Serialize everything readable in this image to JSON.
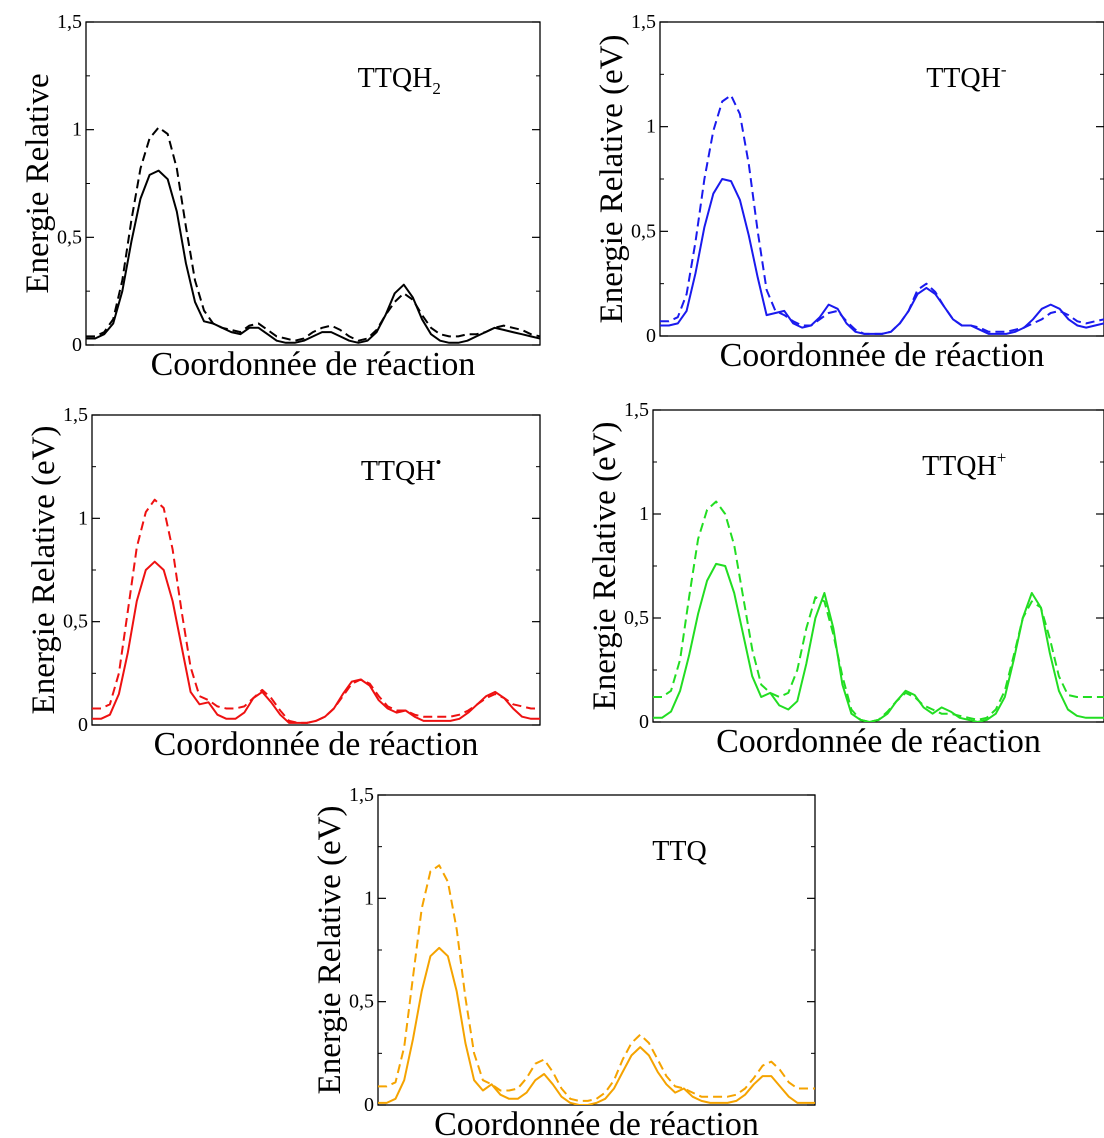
{
  "chart_data": [
    {
      "type": "line",
      "title": "TTQH",
      "title_sup": "",
      "title_sub": "2",
      "xlabel": "Coordonnée de réaction",
      "ylabel": "Energie Relative",
      "ylim": [
        0,
        1.5
      ],
      "yticks": [
        {
          "v": 0,
          "label": "0"
        },
        {
          "v": 0.5,
          "label": "0,5"
        },
        {
          "v": 1,
          "label": "1"
        },
        {
          "v": 1.5,
          "label": "1,5"
        }
      ],
      "color": "#000000",
      "x": [
        0,
        0.02,
        0.04,
        0.06,
        0.08,
        0.1,
        0.12,
        0.14,
        0.16,
        0.18,
        0.2,
        0.22,
        0.24,
        0.26,
        0.28,
        0.3,
        0.32,
        0.34,
        0.36,
        0.38,
        0.4,
        0.42,
        0.44,
        0.46,
        0.48,
        0.5,
        0.52,
        0.54,
        0.56,
        0.58,
        0.6,
        0.62,
        0.64,
        0.66,
        0.68,
        0.7,
        0.72,
        0.74,
        0.76,
        0.78,
        0.8,
        0.82,
        0.84,
        0.86,
        0.88,
        0.9,
        0.92,
        0.94,
        0.96,
        0.98,
        1
      ],
      "series": [
        {
          "style": "solid",
          "values": [
            0.03,
            0.03,
            0.05,
            0.1,
            0.25,
            0.48,
            0.68,
            0.79,
            0.81,
            0.77,
            0.62,
            0.38,
            0.2,
            0.11,
            0.1,
            0.08,
            0.06,
            0.05,
            0.08,
            0.08,
            0.05,
            0.02,
            0.01,
            0.01,
            0.02,
            0.04,
            0.06,
            0.06,
            0.04,
            0.02,
            0.01,
            0.02,
            0.06,
            0.14,
            0.24,
            0.28,
            0.22,
            0.12,
            0.05,
            0.02,
            0.01,
            0.01,
            0.02,
            0.04,
            0.06,
            0.08,
            0.07,
            0.06,
            0.05,
            0.04,
            0.03
          ]
        },
        {
          "style": "dashed",
          "values": [
            0.04,
            0.04,
            0.06,
            0.12,
            0.3,
            0.58,
            0.82,
            0.96,
            1.01,
            0.98,
            0.82,
            0.55,
            0.3,
            0.16,
            0.1,
            0.08,
            0.07,
            0.06,
            0.09,
            0.1,
            0.07,
            0.04,
            0.03,
            0.02,
            0.03,
            0.06,
            0.08,
            0.09,
            0.07,
            0.04,
            0.02,
            0.03,
            0.07,
            0.14,
            0.2,
            0.24,
            0.21,
            0.14,
            0.08,
            0.05,
            0.04,
            0.04,
            0.05,
            0.05,
            0.06,
            0.08,
            0.09,
            0.08,
            0.07,
            0.05,
            0.04
          ]
        }
      ]
    },
    {
      "type": "line",
      "title": "TTQH",
      "title_sup": "-",
      "title_sub": "",
      "xlabel": "Coordonnée de réaction",
      "ylabel": "Energie Relative (eV)",
      "ylim": [
        0,
        1.5
      ],
      "yticks": [
        {
          "v": 0,
          "label": "0"
        },
        {
          "v": 0.5,
          "label": "0,5"
        },
        {
          "v": 1,
          "label": "1"
        },
        {
          "v": 1.5,
          "label": "1,5"
        }
      ],
      "color": "#1a1aee",
      "x": [
        0,
        0.02,
        0.04,
        0.06,
        0.08,
        0.1,
        0.12,
        0.14,
        0.16,
        0.18,
        0.2,
        0.22,
        0.24,
        0.26,
        0.28,
        0.3,
        0.32,
        0.34,
        0.36,
        0.38,
        0.4,
        0.42,
        0.44,
        0.46,
        0.48,
        0.5,
        0.52,
        0.54,
        0.56,
        0.58,
        0.6,
        0.62,
        0.64,
        0.66,
        0.68,
        0.7,
        0.72,
        0.74,
        0.76,
        0.78,
        0.8,
        0.82,
        0.84,
        0.86,
        0.88,
        0.9,
        0.92,
        0.94,
        0.96,
        0.98,
        1
      ],
      "series": [
        {
          "style": "solid",
          "values": [
            0.05,
            0.05,
            0.06,
            0.12,
            0.3,
            0.52,
            0.68,
            0.75,
            0.74,
            0.65,
            0.48,
            0.28,
            0.1,
            0.11,
            0.12,
            0.06,
            0.04,
            0.05,
            0.09,
            0.15,
            0.13,
            0.06,
            0.02,
            0.01,
            0.01,
            0.01,
            0.02,
            0.06,
            0.12,
            0.2,
            0.23,
            0.2,
            0.14,
            0.08,
            0.05,
            0.05,
            0.03,
            0.01,
            0.01,
            0.01,
            0.02,
            0.04,
            0.08,
            0.13,
            0.15,
            0.13,
            0.08,
            0.05,
            0.04,
            0.05,
            0.06
          ]
        },
        {
          "style": "dashed",
          "values": [
            0.07,
            0.07,
            0.09,
            0.2,
            0.45,
            0.75,
            0.98,
            1.12,
            1.15,
            1.06,
            0.82,
            0.5,
            0.22,
            0.12,
            0.1,
            0.07,
            0.05,
            0.05,
            0.08,
            0.11,
            0.12,
            0.07,
            0.03,
            0.01,
            0.01,
            0.01,
            0.02,
            0.06,
            0.12,
            0.22,
            0.25,
            0.21,
            0.14,
            0.08,
            0.05,
            0.05,
            0.04,
            0.02,
            0.02,
            0.02,
            0.03,
            0.04,
            0.06,
            0.08,
            0.11,
            0.12,
            0.1,
            0.07,
            0.06,
            0.07,
            0.08
          ]
        }
      ]
    },
    {
      "type": "line",
      "title": "TTQH",
      "title_sup": "•",
      "title_sub": "",
      "xlabel": "Coordonnée de réaction",
      "ylabel": "Energie Relative (eV)",
      "ylim": [
        0,
        1.5
      ],
      "yticks": [
        {
          "v": 0,
          "label": "0"
        },
        {
          "v": 0.5,
          "label": "0,5"
        },
        {
          "v": 1,
          "label": "1"
        },
        {
          "v": 1.5,
          "label": "1,5"
        }
      ],
      "color": "#ee1111",
      "x": [
        0,
        0.02,
        0.04,
        0.06,
        0.08,
        0.1,
        0.12,
        0.14,
        0.16,
        0.18,
        0.2,
        0.22,
        0.24,
        0.26,
        0.28,
        0.3,
        0.32,
        0.34,
        0.36,
        0.38,
        0.4,
        0.42,
        0.44,
        0.46,
        0.48,
        0.5,
        0.52,
        0.54,
        0.56,
        0.58,
        0.6,
        0.62,
        0.64,
        0.66,
        0.68,
        0.7,
        0.72,
        0.74,
        0.76,
        0.78,
        0.8,
        0.82,
        0.84,
        0.86,
        0.88,
        0.9,
        0.92,
        0.94,
        0.96,
        0.98,
        1
      ],
      "series": [
        {
          "style": "solid",
          "values": [
            0.03,
            0.03,
            0.05,
            0.15,
            0.35,
            0.6,
            0.75,
            0.79,
            0.75,
            0.6,
            0.38,
            0.16,
            0.1,
            0.11,
            0.05,
            0.03,
            0.03,
            0.06,
            0.13,
            0.16,
            0.11,
            0.05,
            0.01,
            0.01,
            0.01,
            0.02,
            0.04,
            0.08,
            0.15,
            0.21,
            0.22,
            0.19,
            0.12,
            0.08,
            0.06,
            0.07,
            0.04,
            0.02,
            0.02,
            0.02,
            0.02,
            0.03,
            0.06,
            0.1,
            0.14,
            0.16,
            0.13,
            0.08,
            0.04,
            0.03,
            0.03
          ]
        },
        {
          "style": "dashed",
          "values": [
            0.08,
            0.08,
            0.1,
            0.25,
            0.55,
            0.86,
            1.03,
            1.09,
            1.05,
            0.85,
            0.55,
            0.28,
            0.14,
            0.12,
            0.09,
            0.08,
            0.08,
            0.09,
            0.13,
            0.17,
            0.13,
            0.07,
            0.02,
            0.01,
            0.01,
            0.02,
            0.04,
            0.08,
            0.14,
            0.2,
            0.22,
            0.2,
            0.14,
            0.09,
            0.07,
            0.07,
            0.05,
            0.04,
            0.04,
            0.04,
            0.04,
            0.05,
            0.07,
            0.1,
            0.13,
            0.15,
            0.13,
            0.1,
            0.09,
            0.08,
            0.08
          ]
        }
      ]
    },
    {
      "type": "line",
      "title": "TTQH",
      "title_sup": "+",
      "title_sub": "",
      "xlabel": "Coordonnée de réaction",
      "ylabel": "Energie Relative (eV)",
      "ylim": [
        0,
        1.5
      ],
      "yticks": [
        {
          "v": 0,
          "label": "0"
        },
        {
          "v": 0.5,
          "label": "0,5"
        },
        {
          "v": 1,
          "label": "1"
        },
        {
          "v": 1.5,
          "label": "1,5"
        }
      ],
      "color": "#22dd22",
      "x": [
        0,
        0.02,
        0.04,
        0.06,
        0.08,
        0.1,
        0.12,
        0.14,
        0.16,
        0.18,
        0.2,
        0.22,
        0.24,
        0.26,
        0.28,
        0.3,
        0.32,
        0.34,
        0.36,
        0.38,
        0.4,
        0.42,
        0.44,
        0.46,
        0.48,
        0.5,
        0.52,
        0.54,
        0.56,
        0.58,
        0.6,
        0.62,
        0.64,
        0.66,
        0.68,
        0.7,
        0.72,
        0.74,
        0.76,
        0.78,
        0.8,
        0.82,
        0.84,
        0.86,
        0.88,
        0.9,
        0.92,
        0.94,
        0.96,
        0.98,
        1
      ],
      "series": [
        {
          "style": "solid",
          "values": [
            0.02,
            0.02,
            0.05,
            0.15,
            0.32,
            0.52,
            0.68,
            0.76,
            0.75,
            0.62,
            0.42,
            0.22,
            0.12,
            0.14,
            0.08,
            0.06,
            0.1,
            0.28,
            0.5,
            0.62,
            0.45,
            0.18,
            0.04,
            0.01,
            0,
            0.01,
            0.04,
            0.1,
            0.15,
            0.13,
            0.07,
            0.04,
            0.07,
            0.05,
            0.02,
            0.01,
            0,
            0.01,
            0.04,
            0.12,
            0.3,
            0.5,
            0.62,
            0.55,
            0.33,
            0.15,
            0.06,
            0.03,
            0.02,
            0.02,
            0.02
          ]
        },
        {
          "style": "dashed",
          "values": [
            0.12,
            0.12,
            0.15,
            0.3,
            0.6,
            0.88,
            1.02,
            1.06,
            1.0,
            0.85,
            0.6,
            0.35,
            0.18,
            0.14,
            0.12,
            0.14,
            0.25,
            0.45,
            0.6,
            0.58,
            0.42,
            0.22,
            0.06,
            0.01,
            0,
            0.01,
            0.05,
            0.1,
            0.14,
            0.12,
            0.08,
            0.06,
            0.04,
            0.04,
            0.03,
            0.02,
            0.01,
            0.02,
            0.06,
            0.15,
            0.32,
            0.5,
            0.58,
            0.55,
            0.4,
            0.22,
            0.13,
            0.12,
            0.12,
            0.12,
            0.12
          ]
        }
      ]
    },
    {
      "type": "line",
      "title": "TTQ",
      "title_sup": "",
      "title_sub": "",
      "xlabel": "Coordonnée de réaction",
      "ylabel": "Energie Relative (eV)",
      "ylim": [
        0,
        1.5
      ],
      "yticks": [
        {
          "v": 0,
          "label": "0"
        },
        {
          "v": 0.5,
          "label": "0,5"
        },
        {
          "v": 1,
          "label": "1"
        },
        {
          "v": 1.5,
          "label": "1,5"
        }
      ],
      "color": "#f5a300",
      "x": [
        0,
        0.02,
        0.04,
        0.06,
        0.08,
        0.1,
        0.12,
        0.14,
        0.16,
        0.18,
        0.2,
        0.22,
        0.24,
        0.26,
        0.28,
        0.3,
        0.32,
        0.34,
        0.36,
        0.38,
        0.4,
        0.42,
        0.44,
        0.46,
        0.48,
        0.5,
        0.52,
        0.54,
        0.56,
        0.58,
        0.6,
        0.62,
        0.64,
        0.66,
        0.68,
        0.7,
        0.72,
        0.74,
        0.76,
        0.78,
        0.8,
        0.82,
        0.84,
        0.86,
        0.88,
        0.9,
        0.92,
        0.94,
        0.96,
        0.98,
        1
      ],
      "series": [
        {
          "style": "solid",
          "values": [
            0.01,
            0.01,
            0.03,
            0.12,
            0.32,
            0.55,
            0.72,
            0.76,
            0.72,
            0.55,
            0.3,
            0.12,
            0.07,
            0.1,
            0.05,
            0.03,
            0.03,
            0.06,
            0.12,
            0.15,
            0.1,
            0.04,
            0.01,
            0,
            0,
            0.01,
            0.03,
            0.08,
            0.16,
            0.24,
            0.28,
            0.24,
            0.16,
            0.1,
            0.06,
            0.08,
            0.04,
            0.02,
            0.01,
            0.01,
            0.01,
            0.02,
            0.05,
            0.1,
            0.14,
            0.14,
            0.09,
            0.04,
            0.01,
            0.01,
            0.01
          ]
        },
        {
          "style": "dashed",
          "values": [
            0.09,
            0.09,
            0.11,
            0.28,
            0.62,
            0.95,
            1.13,
            1.16,
            1.08,
            0.85,
            0.52,
            0.25,
            0.12,
            0.1,
            0.07,
            0.07,
            0.08,
            0.13,
            0.2,
            0.22,
            0.16,
            0.08,
            0.03,
            0.02,
            0.02,
            0.03,
            0.06,
            0.12,
            0.22,
            0.3,
            0.34,
            0.3,
            0.22,
            0.14,
            0.09,
            0.08,
            0.06,
            0.04,
            0.04,
            0.04,
            0.04,
            0.05,
            0.08,
            0.13,
            0.19,
            0.21,
            0.17,
            0.11,
            0.08,
            0.08,
            0.08
          ]
        }
      ]
    }
  ]
}
